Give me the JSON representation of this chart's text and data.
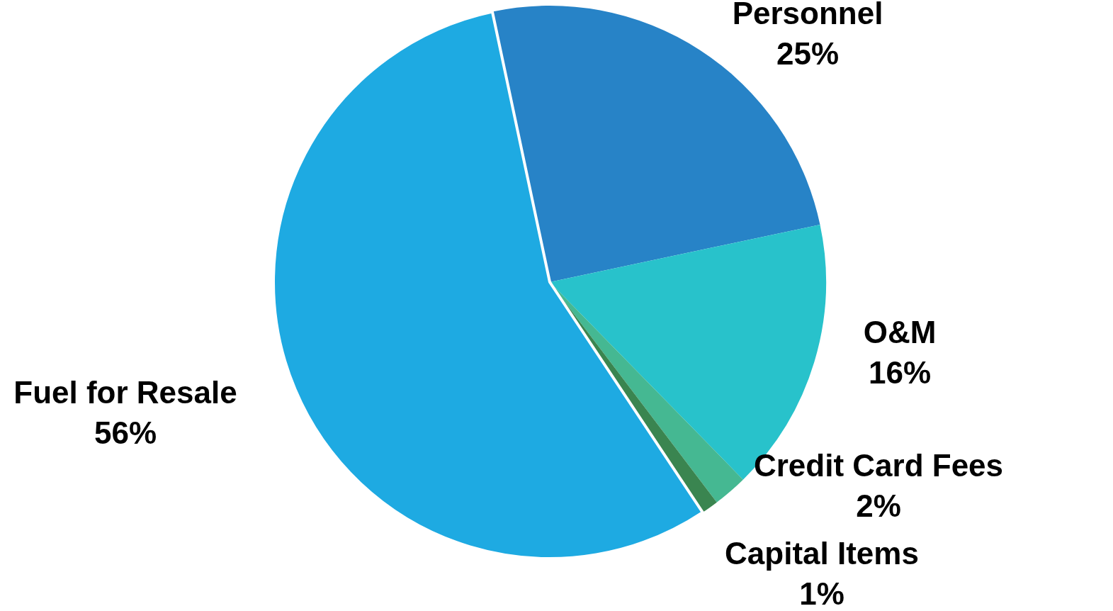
{
  "chart_data": {
    "type": "pie",
    "categories": [
      "Personnel",
      "O&M",
      "Credit Card Fees",
      "Capital Items",
      "Fuel for Resale"
    ],
    "values": [
      25,
      16,
      2,
      1,
      56
    ],
    "value_labels": [
      "25%",
      "16%",
      "2%",
      "1%",
      "56%"
    ],
    "colors": [
      "#2783c7",
      "#28c2cb",
      "#45b892",
      "#3a8550",
      "#1eaae2"
    ],
    "legend": false
  }
}
